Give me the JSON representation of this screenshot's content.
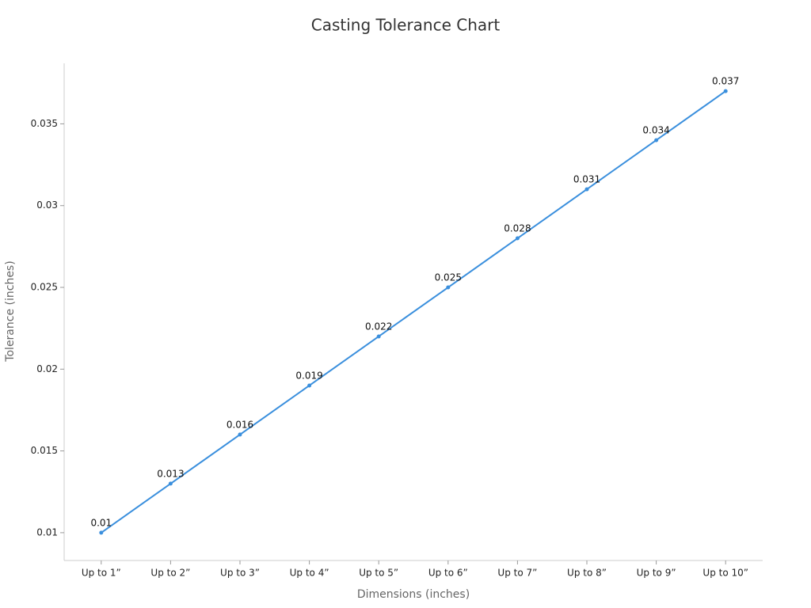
{
  "chart_data": {
    "type": "line",
    "title": "Casting Tolerance Chart",
    "x_label": "Dimensions (inches)",
    "y_label": "Tolerance (inches)",
    "categories": [
      "Up to 1”",
      "Up to 2”",
      "Up to 3”",
      "Up to 4”",
      "Up to 5”",
      "Up to 6”",
      "Up to 7”",
      "Up to 8”",
      "Up to 9”",
      "Up to 10”"
    ],
    "values": [
      0.01,
      0.013,
      0.016,
      0.019,
      0.022,
      0.025,
      0.028,
      0.031,
      0.034,
      0.037
    ],
    "color": "#3a8fdd",
    "ylim": [
      0.0083,
      0.0387
    ],
    "yticks": [
      0.01,
      0.015,
      0.02,
      0.025,
      0.03,
      0.035
    ],
    "grid": false
  }
}
